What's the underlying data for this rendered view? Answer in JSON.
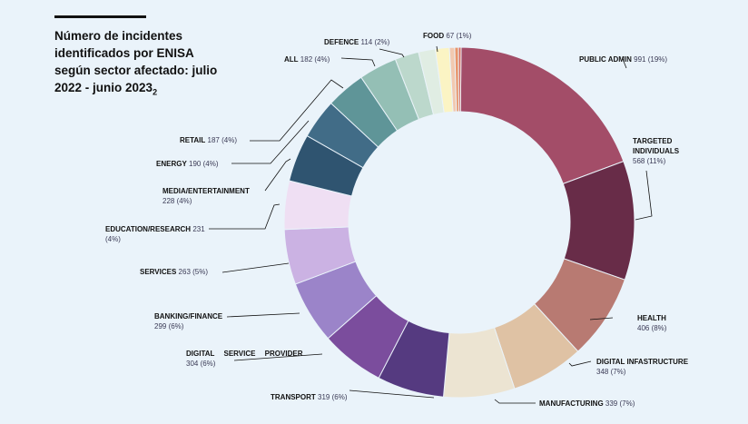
{
  "title": "Número de incidentes identificados por ENISA según sector afectado: julio 2022 - junio 2023",
  "title_sub": "2",
  "chart_data": {
    "type": "pie",
    "donut": true,
    "title": "Número de incidentes identificados por ENISA según sector afectado: julio 2022 - junio 2023",
    "slices": [
      {
        "name": "PUBLIC ADMIN",
        "value": 991,
        "pct": "991 (19%)",
        "color": "#a34d68"
      },
      {
        "name": "TARGETED INDIVIDUALS",
        "value": 568,
        "pct": "568 (11%)",
        "color": "#682c48"
      },
      {
        "name": "HEALTH",
        "value": 406,
        "pct": "406 (8%)",
        "color": "#b87a72"
      },
      {
        "name": "DIGITAL INFASTRUCTURE",
        "value": 348,
        "pct": "348 (7%)",
        "color": "#dfc2a4"
      },
      {
        "name": "MANUFACTURING",
        "value": 339,
        "pct": "339 (7%)",
        "color": "#ece4d2"
      },
      {
        "name": "TRANSPORT",
        "value": 319,
        "pct": "319 (6%)",
        "color": "#553a80"
      },
      {
        "name": "DIGITAL SERVICE PROVIDER",
        "value": 304,
        "pct": "304 (6%)",
        "color": "#7b4d9d"
      },
      {
        "name": "BANKING/FINANCE",
        "value": 299,
        "pct": "299 (6%)",
        "color": "#9b84c9"
      },
      {
        "name": "SERVICES",
        "value": 263,
        "pct": "263 (5%)",
        "color": "#cbb2e3"
      },
      {
        "name": "EDUCATION/RESEARCH",
        "value": 231,
        "pct": "231 (4%)",
        "color": "#efdff3"
      },
      {
        "name": "MEDIA/ENTERTAINMENT",
        "value": 228,
        "pct": "228 (4%)",
        "color": "#2f5470"
      },
      {
        "name": "ENERGY",
        "value": 190,
        "pct": "190 (4%)",
        "color": "#416c87"
      },
      {
        "name": "RETAIL",
        "value": 187,
        "pct": "187 (4%)",
        "color": "#5f9598"
      },
      {
        "name": "ALL",
        "value": 182,
        "pct": "182 (4%)",
        "color": "#94bfb5"
      },
      {
        "name": "DEFENCE",
        "value": 114,
        "pct": "114 (2%)",
        "color": "#bcd8cc"
      },
      {
        "name": "",
        "value": 80,
        "color": "#e0ede3"
      },
      {
        "name": "FOOD",
        "value": 67,
        "pct": "67 (1%)",
        "color": "#fbf4c4"
      },
      {
        "name": "",
        "value": 25,
        "color": "#f2c9b0"
      },
      {
        "name": "",
        "value": 18,
        "color": "#e8956a"
      },
      {
        "name": "",
        "value": 12,
        "color": "#d86a5a"
      }
    ]
  }
}
